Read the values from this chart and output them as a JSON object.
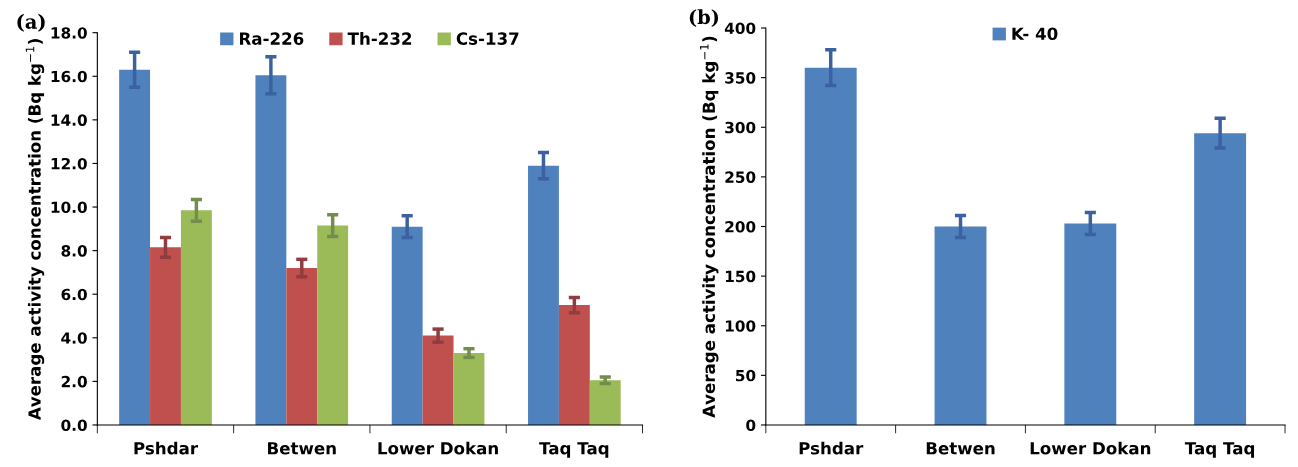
{
  "chart_data": [
    {
      "type": "bar",
      "title": "(a)",
      "ylabel": "Average activity concentration (Bq kg$^{−1}$)",
      "categories": [
        "Pshdar",
        "Betwen",
        "Lower Dokan",
        "Taq Taq"
      ],
      "series": [
        {
          "name": "Ra-226",
          "color": "#4f81bd",
          "values": [
            16.3,
            16.05,
            9.1,
            11.9
          ],
          "errors": [
            0.8,
            0.85,
            0.5,
            0.6
          ]
        },
        {
          "name": "Th-232",
          "color": "#c0504d",
          "values": [
            8.15,
            7.2,
            4.1,
            5.5
          ],
          "errors": [
            0.45,
            0.4,
            0.3,
            0.35
          ]
        },
        {
          "name": "Cs-137",
          "color": "#9bbb59",
          "values": [
            9.85,
            9.15,
            3.3,
            2.05
          ],
          "errors": [
            0.5,
            0.5,
            0.2,
            0.15
          ]
        }
      ],
      "ylim": [
        0,
        18
      ],
      "yticks": [
        {
          "value": 0,
          "label": "0.0"
        },
        {
          "value": 2,
          "label": "2.0"
        },
        {
          "value": 4,
          "label": "4.0"
        },
        {
          "value": 6,
          "label": "6.0"
        },
        {
          "value": 8,
          "label": "8.0"
        },
        {
          "value": 10,
          "label": "10.0"
        },
        {
          "value": 12,
          "label": "12.0"
        },
        {
          "value": 14,
          "label": "14.0"
        },
        {
          "value": 16,
          "label": "16.0"
        },
        {
          "value": 18,
          "label": "18.0"
        }
      ],
      "grid": false,
      "legend": "top"
    },
    {
      "type": "bar",
      "title": "(b)",
      "ylabel": "Average activity concentration (Bq kg$^{−1}$)",
      "categories": [
        "Pshdar",
        "Betwen",
        "Lower Dokan",
        "Taq Taq"
      ],
      "series": [
        {
          "name": "K- 40",
          "color": "#4f81bd",
          "values": [
            360,
            200,
            203,
            294
          ],
          "errors": [
            18,
            11,
            11,
            15
          ]
        }
      ],
      "ylim": [
        0,
        400
      ],
      "yticks": [
        0,
        50,
        100,
        150,
        200,
        250,
        300,
        350,
        400
      ],
      "grid": false,
      "legend": "top"
    }
  ]
}
